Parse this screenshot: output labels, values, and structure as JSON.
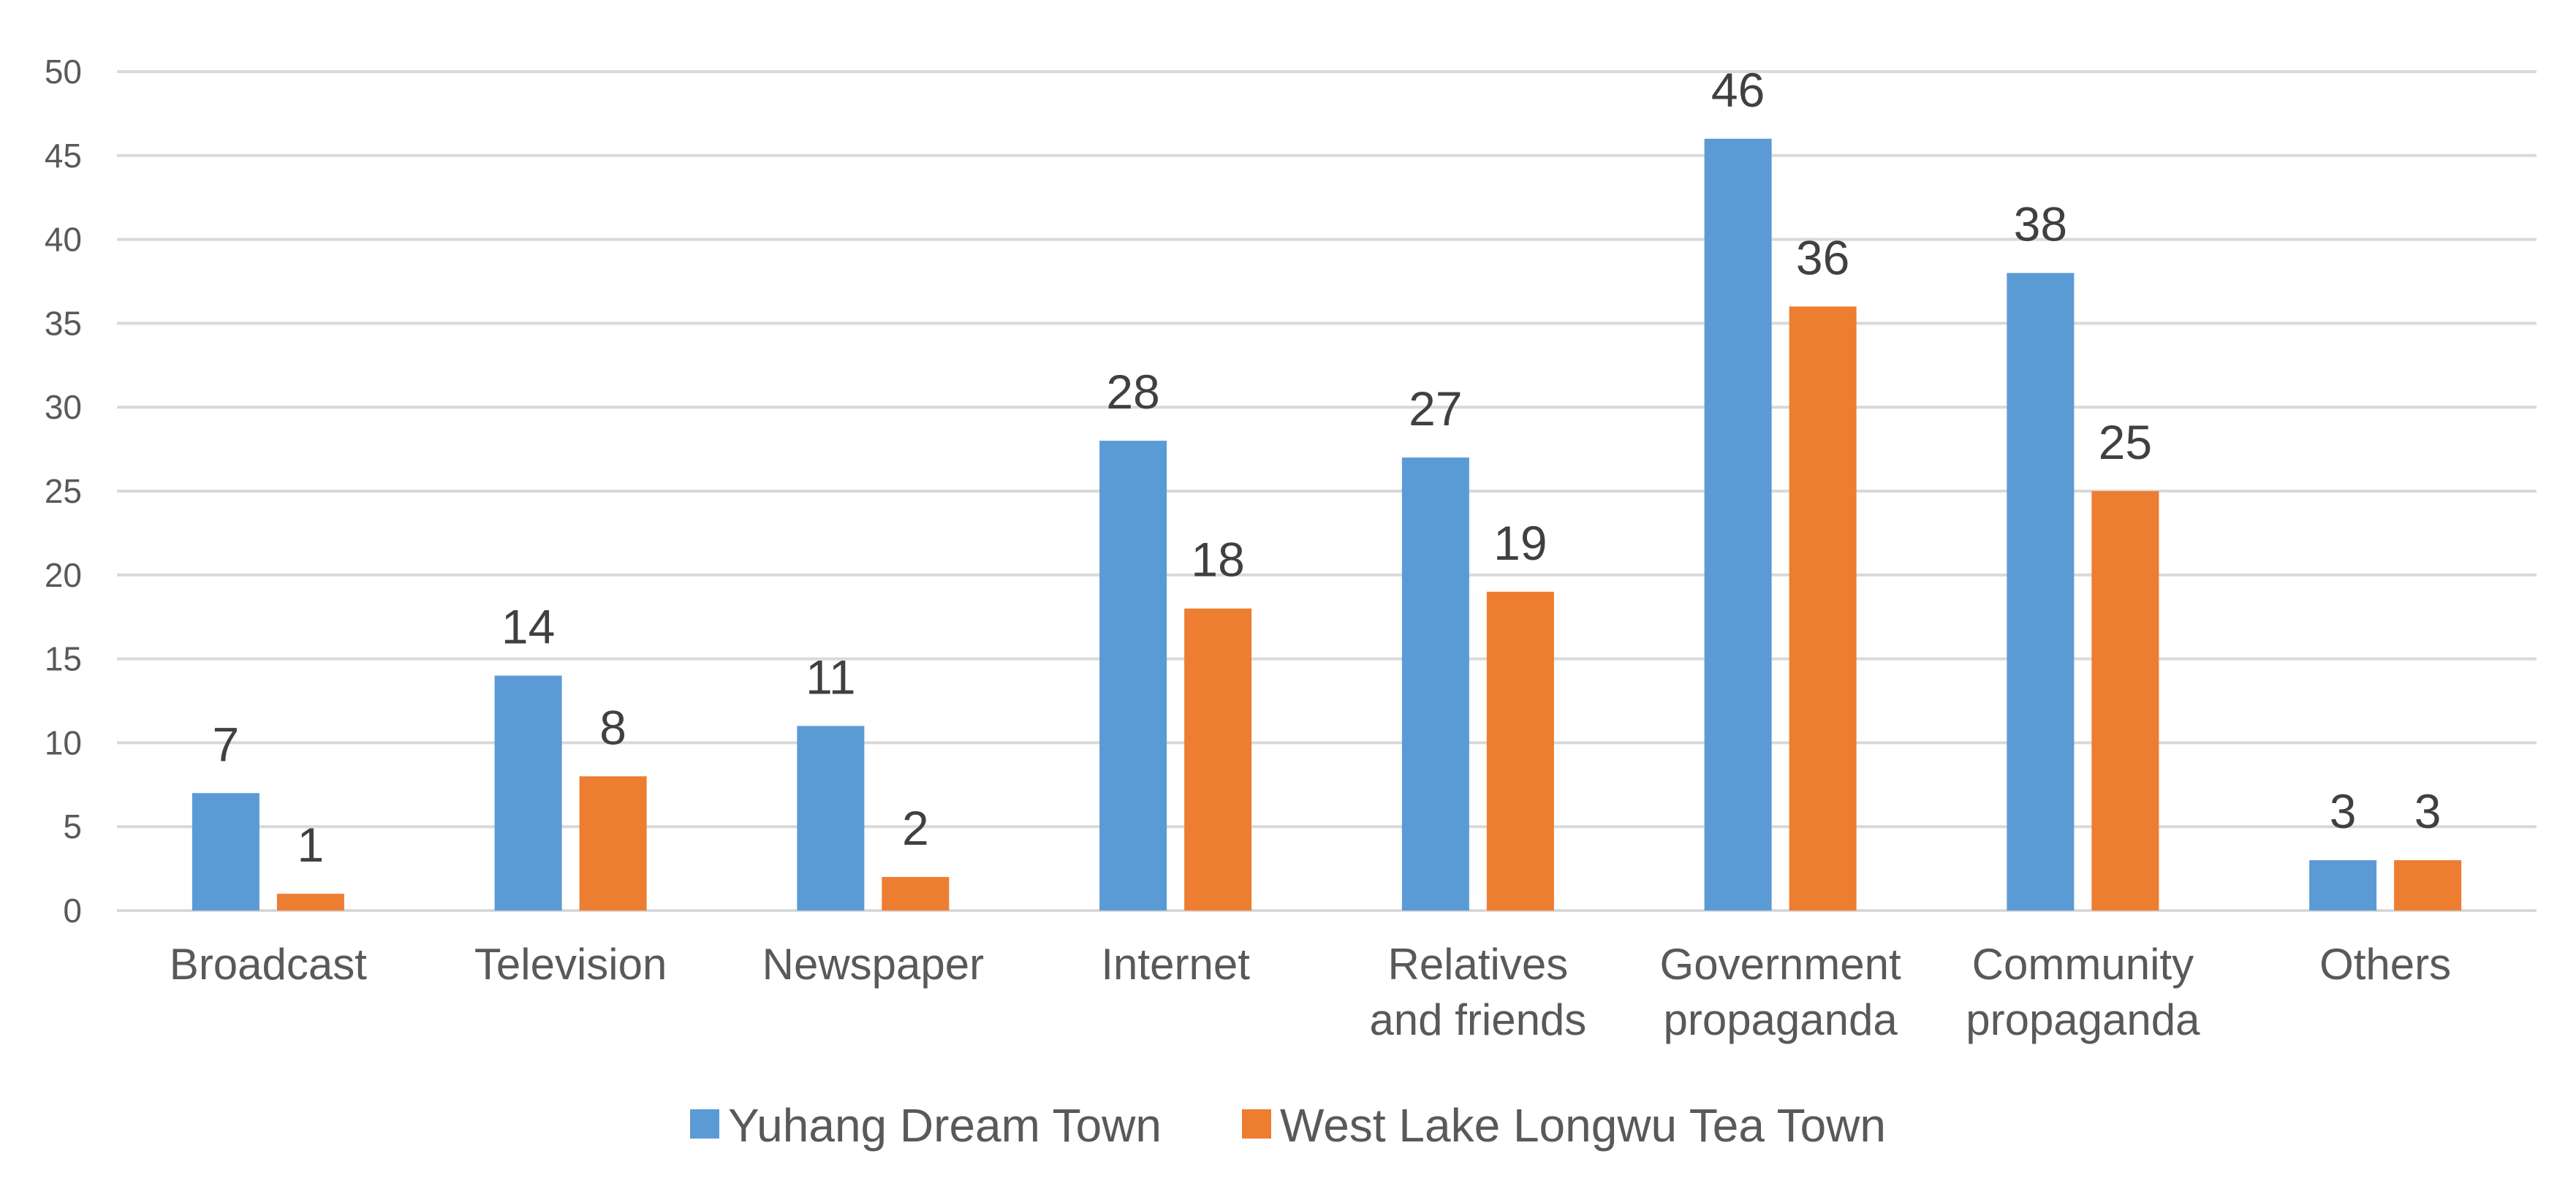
{
  "chart_data": {
    "type": "bar",
    "title": "",
    "xlabel": "",
    "ylabel": "",
    "ylim": [
      0,
      50
    ],
    "yticks": [
      0,
      5,
      10,
      15,
      20,
      25,
      30,
      35,
      40,
      45,
      50
    ],
    "grid": true,
    "legend_position": "bottom",
    "categories": [
      [
        "Broadcast"
      ],
      [
        "Television"
      ],
      [
        "Newspaper"
      ],
      [
        "Internet"
      ],
      [
        "Relatives",
        "and friends"
      ],
      [
        "Government",
        "propaganda"
      ],
      [
        "Community",
        "propaganda"
      ],
      [
        "Others"
      ]
    ],
    "series": [
      {
        "name": "Yuhang Dream Town",
        "color": "#5b9bd5",
        "values": [
          7,
          14,
          11,
          28,
          27,
          46,
          38,
          3
        ]
      },
      {
        "name": "West Lake Longwu Tea Town",
        "color": "#ed7d31",
        "values": [
          1,
          8,
          2,
          18,
          19,
          36,
          25,
          3
        ]
      }
    ]
  }
}
